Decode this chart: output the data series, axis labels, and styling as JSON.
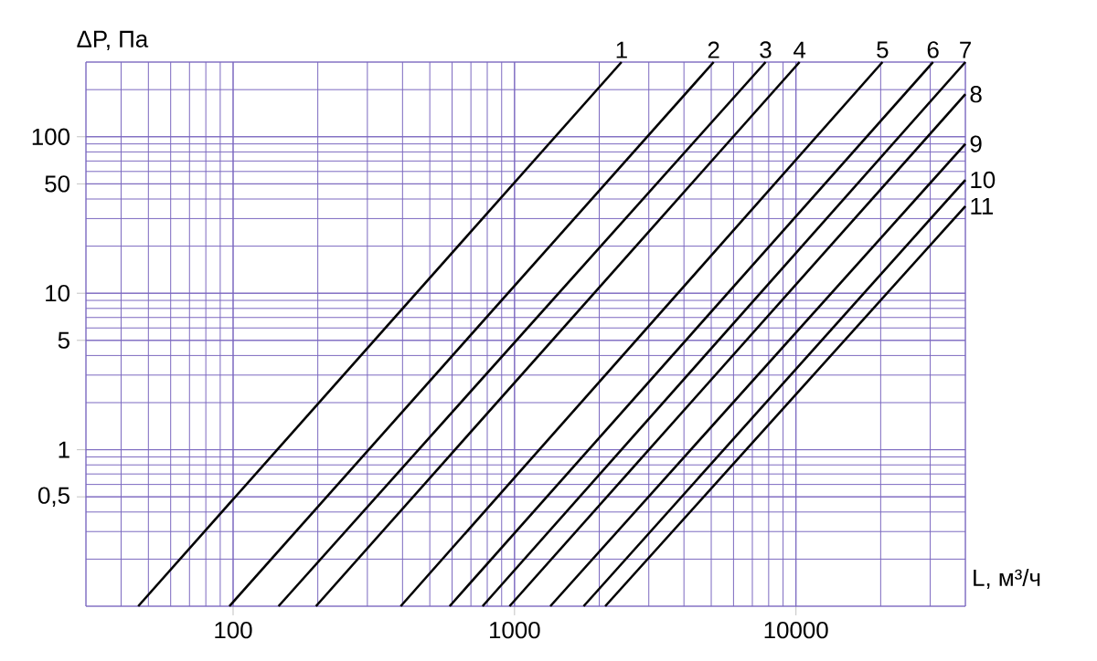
{
  "chart_data": {
    "type": "line",
    "xlabel": "L, м³/ч",
    "ylabel": "ΔP, Па",
    "log": "xy",
    "grid": true,
    "legend": false,
    "marker": "none",
    "line_style": "solid",
    "xlim": [
      30,
      40000
    ],
    "ylim": [
      0.1,
      300
    ],
    "xticks": [
      100,
      1000,
      10000
    ],
    "yticks": [
      {
        "value": 0.5,
        "label": "0,5"
      },
      1,
      5,
      10,
      50,
      100
    ],
    "series": [
      {
        "name": "1",
        "color": "#000000",
        "x": [
          46,
          2400
        ],
        "values": [
          0.1,
          300
        ]
      },
      {
        "name": "2",
        "color": "#000000",
        "x": [
          97,
          5100
        ],
        "values": [
          0.1,
          300
        ]
      },
      {
        "name": "3",
        "color": "#000000",
        "x": [
          145,
          7800
        ],
        "values": [
          0.1,
          300
        ]
      },
      {
        "name": "4",
        "color": "#000000",
        "x": [
          197,
          10300
        ],
        "values": [
          0.1,
          300
        ]
      },
      {
        "name": "5",
        "color": "#000000",
        "x": [
          394,
          20300
        ],
        "values": [
          0.1,
          300
        ]
      },
      {
        "name": "6",
        "color": "#000000",
        "x": [
          588,
          30700
        ],
        "values": [
          0.1,
          300
        ]
      },
      {
        "name": "7",
        "color": "#000000",
        "x": [
          770,
          40000
        ],
        "values": [
          0.1,
          300
        ]
      },
      {
        "name": "8",
        "color": "#000000",
        "x": [
          960,
          40000
        ],
        "values": [
          0.1,
          187
        ]
      },
      {
        "name": "9",
        "color": "#000000",
        "x": [
          1340,
          40000
        ],
        "values": [
          0.1,
          90
        ]
      },
      {
        "name": "10",
        "color": "#000000",
        "x": [
          1760,
          40000
        ],
        "values": [
          0.1,
          53
        ]
      },
      {
        "name": "11",
        "color": "#000000",
        "x": [
          2100,
          40000
        ],
        "values": [
          0.1,
          36
        ]
      }
    ]
  }
}
